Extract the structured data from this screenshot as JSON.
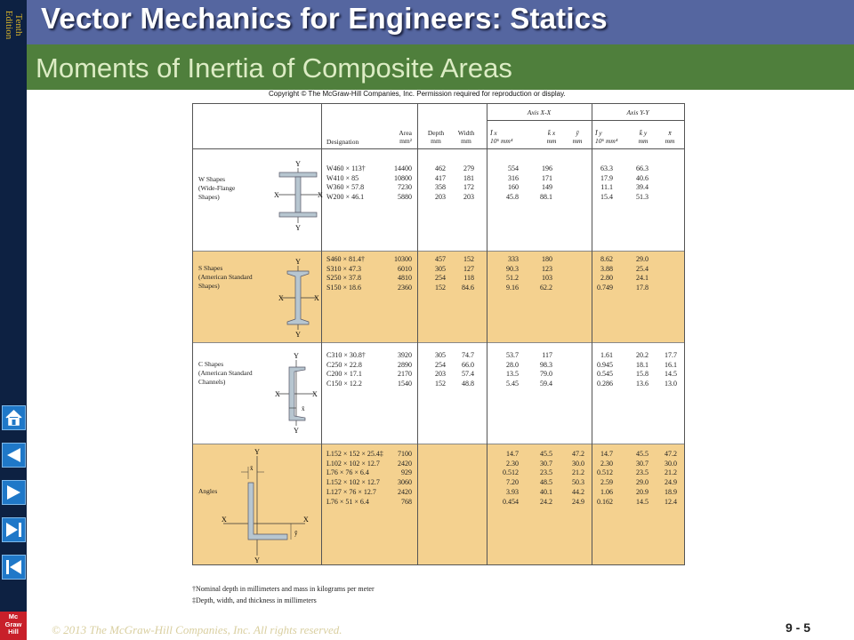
{
  "edition": "Tenth\nEdition",
  "title": "Vector Mechanics for Engineers: Statics",
  "subtitle": "Moments of Inertia of Composite Areas",
  "logo": "Mc\nGraw\nHill",
  "copyright": "Copyright © The McGraw-Hill Companies, Inc. Permission required for reproduction or display.",
  "table": {
    "axis_xx": "Axis X-X",
    "axis_yy": "Axis Y-Y",
    "headers": {
      "designation": "Designation",
      "area": "Area\nmm²",
      "depth": "Depth\nmm",
      "width": "Width\nmm",
      "ix": "Ī x\n10⁶ mm⁴",
      "kx": "k̄ x\nmm",
      "ybar": "ȳ\nmm",
      "iy": "Ī y\n10⁶ mm⁴",
      "ky": "k̄ y\nmm",
      "xbar": "x̄\nmm"
    },
    "groups": [
      {
        "name": "W Shapes\n(Wide-Flange\nShapes)",
        "designation": "W460 × 113†\nW410 × 85\nW360 × 57.8\nW200 × 46.1",
        "area": "14400\n10800\n7230\n5880",
        "depth": "462\n417\n358\n203",
        "width": "279\n181\n172\n203",
        "ix": "554\n316\n160\n45.8",
        "kx": "196\n171\n149\n88.1",
        "ybar": "",
        "iy": "63.3\n17.9\n11.1\n15.4",
        "ky": "66.3\n40.6\n39.4\n51.3",
        "xbar": ""
      },
      {
        "name": "S Shapes\n(American Standard\nShapes)",
        "designation": "S460 × 81.4†\nS310 × 47.3\nS250 × 37.8\nS150 × 18.6",
        "area": "10300\n6010\n4810\n2360",
        "depth": "457\n305\n254\n152",
        "width": "152\n127\n118\n84.6",
        "ix": "333\n90.3\n51.2\n9.16",
        "kx": "180\n123\n103\n62.2",
        "ybar": "",
        "iy": "8.62\n3.88\n2.80\n0.749",
        "ky": "29.0\n25.4\n24.1\n17.8",
        "xbar": ""
      },
      {
        "name": "C Shapes\n(American Standard\nChannels)",
        "designation": "C310 × 30.8†\nC250 × 22.8\nC200 × 17.1\nC150 × 12.2",
        "area": "3920\n2890\n2170\n1540",
        "depth": "305\n254\n203\n152",
        "width": "74.7\n66.0\n57.4\n48.8",
        "ix": "53.7\n28.0\n13.5\n5.45",
        "kx": "117\n98.3\n79.0\n59.4",
        "ybar": "",
        "iy": "1.61\n0.945\n0.545\n0.286",
        "ky": "20.2\n18.1\n15.8\n13.6",
        "xbar": "17.7\n16.1\n14.5\n13.0"
      },
      {
        "name": "Angles",
        "designation": "L152 × 152 × 25.4‡\nL102 × 102 × 12.7\nL76 × 76 × 6.4\nL152 × 102 × 12.7\nL127 × 76 × 12.7\nL76 × 51 × 6.4",
        "area": "7100\n2420\n929\n3060\n2420\n768",
        "depth": "",
        "width": "",
        "ix": "14.7\n2.30\n0.512\n7.20\n3.93\n0.454",
        "kx": "45.5\n30.7\n23.5\n48.5\n40.1\n24.2",
        "ybar": "47.2\n30.0\n21.2\n50.3\n44.2\n24.9",
        "iy": "14.7\n2.30\n0.512\n2.59\n1.06\n0.162",
        "ky": "45.5\n30.7\n23.5\n29.0\n20.9\n14.5",
        "xbar": "47.2\n30.0\n21.2\n24.9\n18.9\n12.4"
      }
    ],
    "axis_letters": {
      "x": "X",
      "y": "Y",
      "xbar": "x̄",
      "ybar": "ȳ"
    }
  },
  "notes": [
    "†Nominal depth in millimeters and mass in kilograms per meter",
    "‡Depth, width, and thickness in millimeters"
  ],
  "footer": "© 2013 The McGraw-Hill Companies, Inc. All rights reserved.",
  "page_number": "9 -  5",
  "colors": {
    "band": "#f4d18f",
    "titlebar": "#5566a0",
    "subbar": "#4f7f3c",
    "sidebar": "#0d2142"
  }
}
